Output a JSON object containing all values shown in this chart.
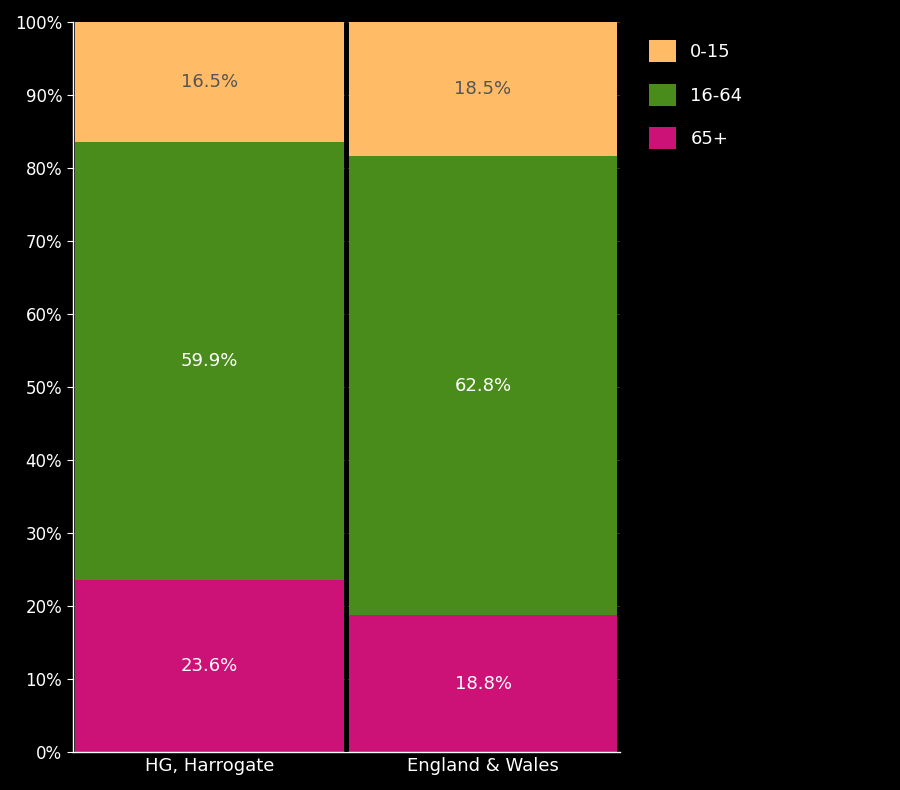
{
  "categories": [
    "HG, Harrogate",
    "England & Wales"
  ],
  "segments": {
    "65+": [
      23.6,
      18.8
    ],
    "16-64": [
      59.9,
      62.8
    ],
    "0-15": [
      16.5,
      18.5
    ]
  },
  "colors": {
    "65+": "#CC1177",
    "16-64": "#4A8C1C",
    "0-15": "#FFBB66"
  },
  "label_colors": {
    "65+": "white",
    "16-64": "white",
    "0-15": "#555555"
  },
  "legend_order": [
    "0-15",
    "16-64",
    "65+"
  ],
  "background_color": "#000000",
  "text_color": "#ffffff",
  "bar_width": 0.98,
  "ylim": [
    0,
    100
  ],
  "yticks": [
    0,
    10,
    20,
    30,
    40,
    50,
    60,
    70,
    80,
    90,
    100
  ],
  "ytick_labels": [
    "0%",
    "10%",
    "20%",
    "30%",
    "40%",
    "50%",
    "60%",
    "70%",
    "80%",
    "90%",
    "100%"
  ]
}
